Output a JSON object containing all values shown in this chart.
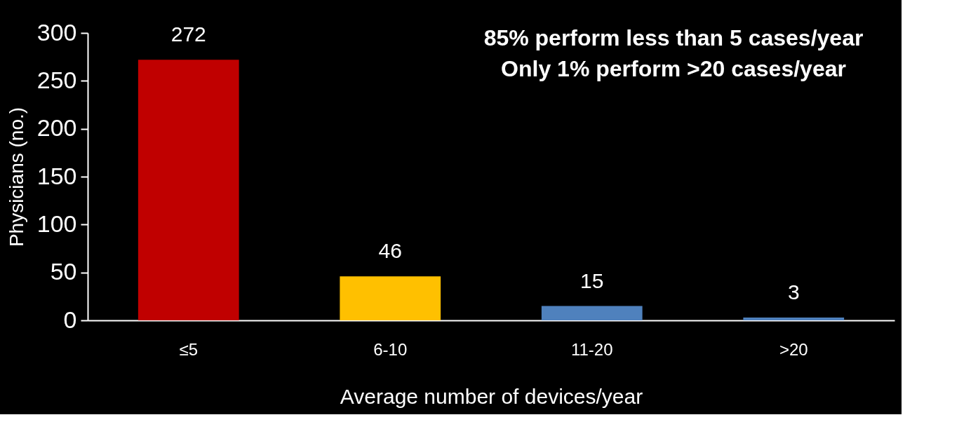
{
  "chart_data": {
    "type": "bar",
    "categories": [
      "≤5",
      "6-10",
      "11-20",
      ">20"
    ],
    "values": [
      272,
      46,
      15,
      3
    ],
    "colors": [
      "#c00000",
      "#ffc000",
      "#4f81bd",
      "#4f81bd"
    ],
    "xlabel": "Average number of devices/year",
    "ylabel": "Physicians (no.)",
    "ylim": [
      0,
      300
    ],
    "yticks": [
      0,
      50,
      100,
      150,
      200,
      250,
      300
    ],
    "data_labels": true,
    "grid": false,
    "annotations": [
      "85% perform less than 5 cases/year",
      "Only 1% perform >20 cases/year"
    ]
  }
}
